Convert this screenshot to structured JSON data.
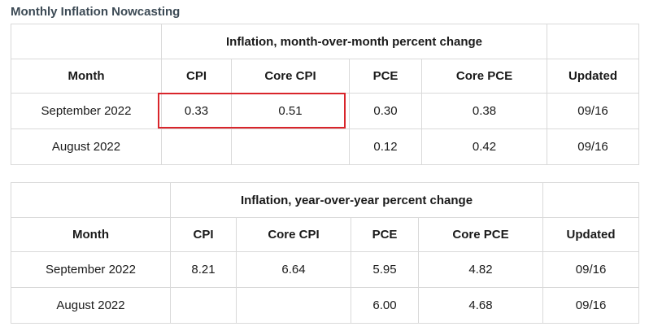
{
  "title": "Monthly Inflation Nowcasting",
  "columns": [
    "Month",
    "CPI",
    "Core CPI",
    "PCE",
    "Core PCE",
    "Updated"
  ],
  "mom": {
    "caption": "Inflation, month-over-month percent change",
    "rows": [
      {
        "month": "September 2022",
        "cpi": "0.33",
        "core_cpi": "0.51",
        "pce": "0.30",
        "core_pce": "0.38",
        "updated": "09/16"
      },
      {
        "month": "August 2022",
        "cpi": "",
        "core_cpi": "",
        "pce": "0.12",
        "core_pce": "0.42",
        "updated": "09/16"
      }
    ]
  },
  "yoy": {
    "caption": "Inflation, year-over-year percent change",
    "rows": [
      {
        "month": "September 2022",
        "cpi": "8.21",
        "core_cpi": "6.64",
        "pce": "5.95",
        "core_pce": "4.82",
        "updated": "09/16"
      },
      {
        "month": "August 2022",
        "cpi": "",
        "core_cpi": "",
        "pce": "6.00",
        "core_pce": "4.68",
        "updated": "09/16"
      }
    ]
  },
  "colors": {
    "highlight": "#d9252b",
    "title": "#3c4a55",
    "border": "#d9d9d9"
  }
}
